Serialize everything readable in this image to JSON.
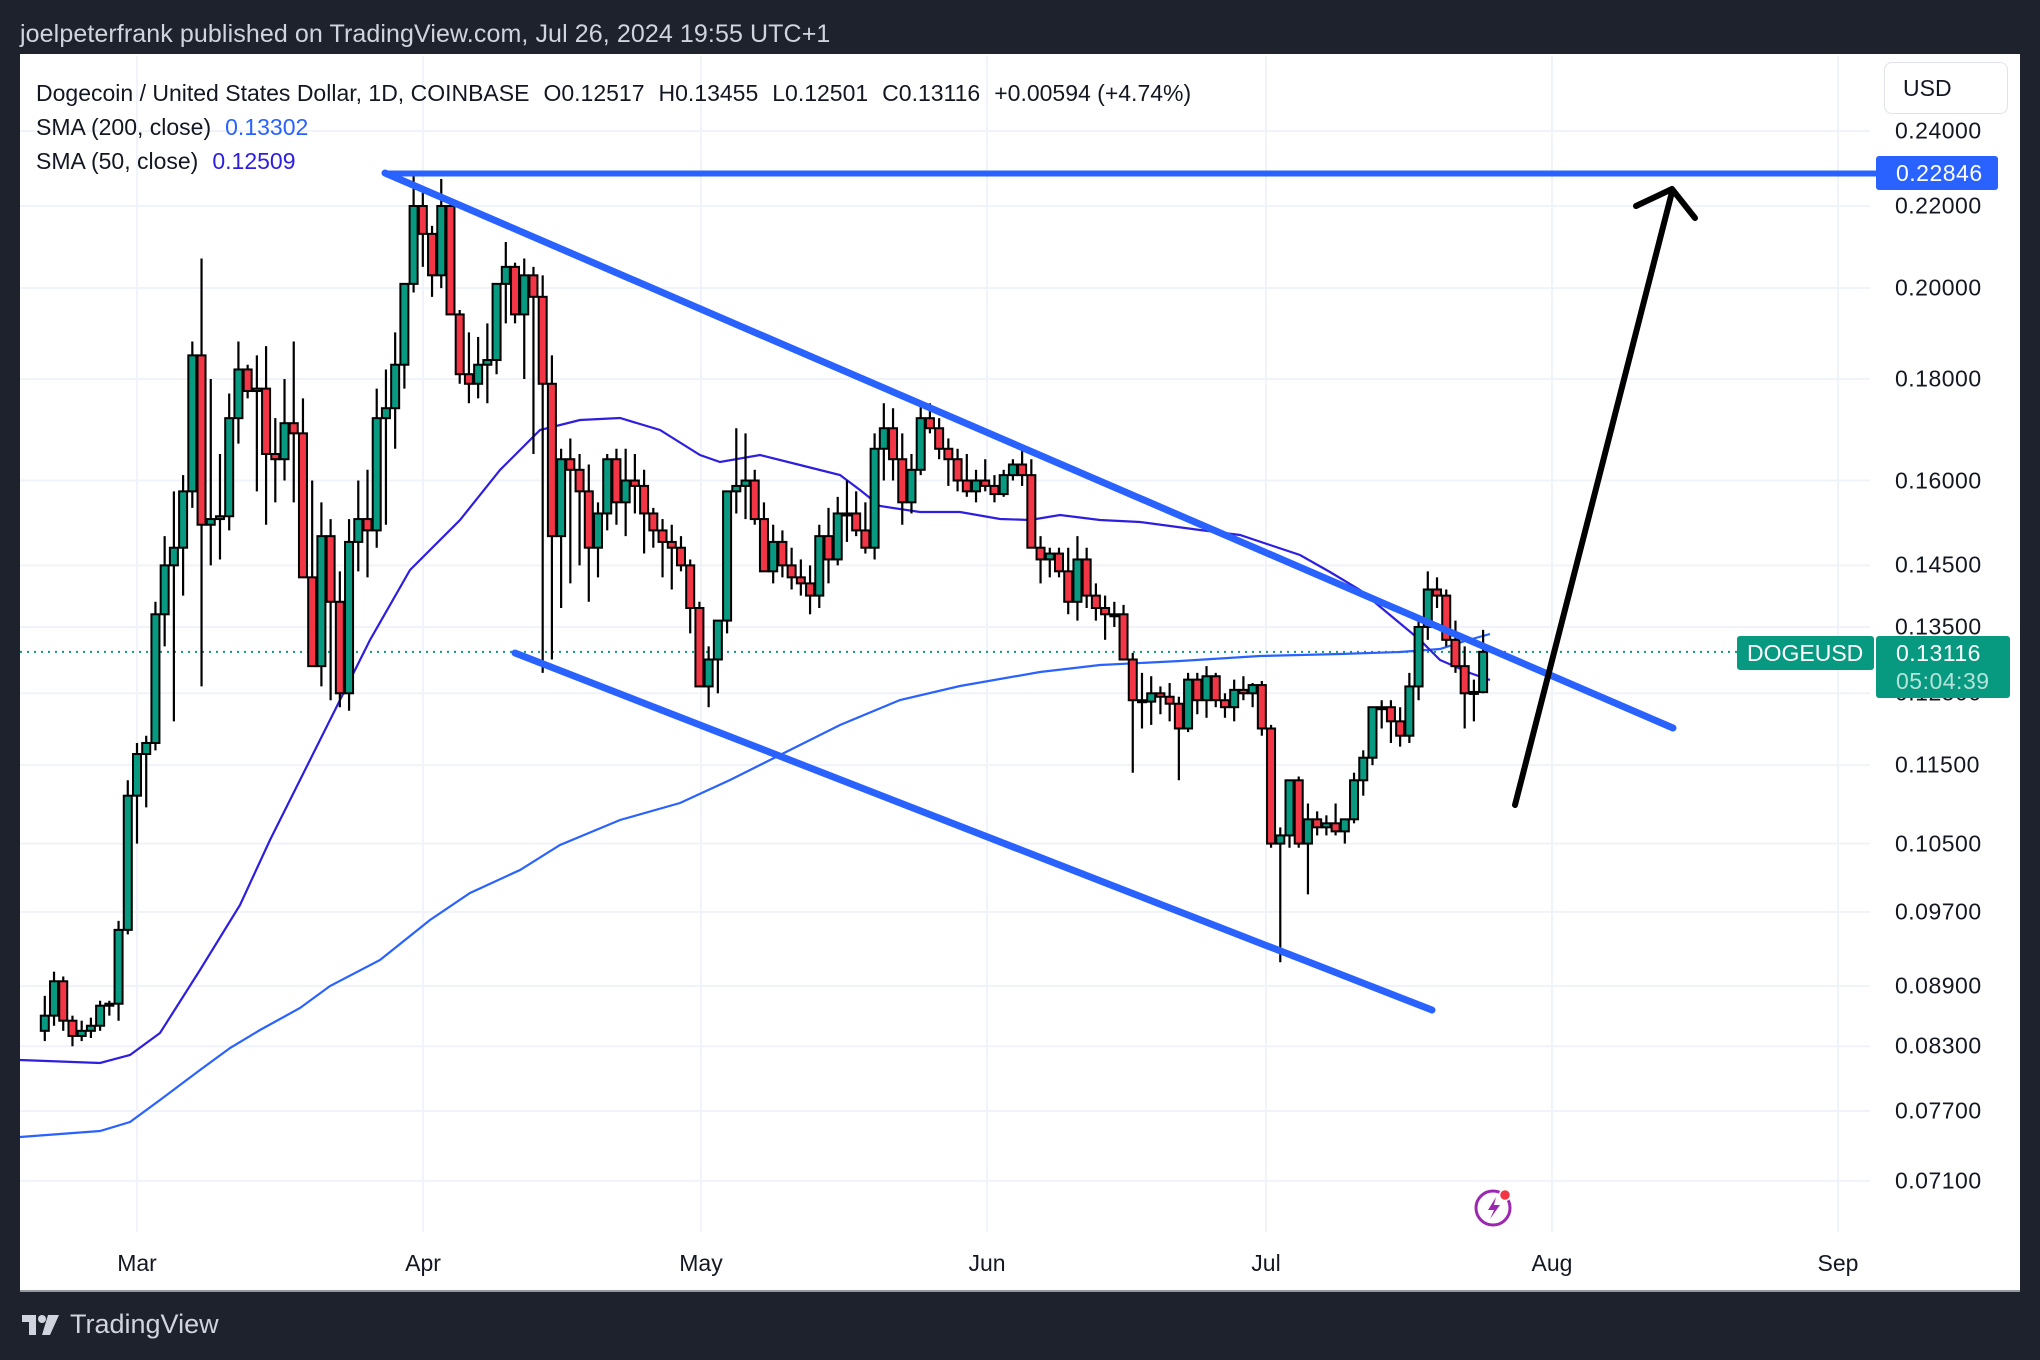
{
  "header": {
    "published": "joelpeterfrank published on TradingView.com, Jul 26, 2024 19:55 UTC+1"
  },
  "legend": {
    "symbol_line": "Dogecoin / United States Dollar, 1D, COINBASE",
    "open": "O0.12517",
    "high": "H0.13455",
    "low": "L0.12501",
    "close": "C0.13116",
    "change": "+0.00594 (+4.74%)",
    "sma200_label": "SMA (200, close)",
    "sma200_value": "0.13302",
    "sma50_label": "SMA (50, close)",
    "sma50_value": "0.12509"
  },
  "price_axis": {
    "currency_button": "USD",
    "level_label": "0.22846",
    "symbol_label": "DOGEUSD",
    "last_price": "0.13116",
    "countdown": "05:04:39"
  },
  "footer": {
    "brand": "TradingView"
  },
  "colors": {
    "up": "#089981",
    "down": "#f23645",
    "sma200": "#2962ff",
    "sma50": "#2d1ee0",
    "trendline": "#2962ff",
    "arrow": "#000000",
    "frame": "#1e222d"
  },
  "chart_data": {
    "type": "candlestick",
    "title": "Dogecoin / United States Dollar, 1D, COINBASE",
    "xlabel": "",
    "ylabel": "USD",
    "y_scale": "log",
    "ylim": [
      0.066,
      0.252
    ],
    "y_ticks": [
      "0.24000",
      "0.22000",
      "0.20000",
      "0.18000",
      "0.16000",
      "0.14500",
      "0.13500",
      "0.12500",
      "0.11500",
      "0.10500",
      "0.09700",
      "0.08900",
      "0.08300",
      "0.07700",
      "0.07100"
    ],
    "x_ticks": [
      "Mar",
      "Apr",
      "May",
      "Jun",
      "Jul",
      "Aug",
      "Sep"
    ],
    "grid": true,
    "last": {
      "open": 0.12517,
      "high": 0.13455,
      "low": 0.12501,
      "close": 0.13116,
      "change": 0.00594,
      "change_pct": 4.74
    },
    "indicators": [
      {
        "name": "SMA (200, close)",
        "value": 0.13302,
        "color": "#2962ff"
      },
      {
        "name": "SMA (50, close)",
        "value": 0.12509,
        "color": "#2d1ee0"
      }
    ],
    "drawings": [
      {
        "type": "horizontal_ray",
        "price": 0.22846,
        "from": "2024-03-28"
      },
      {
        "type": "trendline",
        "name": "upper channel",
        "from": [
          "2024-03-28",
          0.2285
        ],
        "to": [
          "2024-08-08",
          0.1215
        ]
      },
      {
        "type": "trendline",
        "name": "lower channel",
        "from": [
          "2024-04-12",
          0.1298
        ],
        "to": [
          "2024-07-20",
          0.0865
        ]
      },
      {
        "type": "arrow",
        "from": [
          "2024-07-30",
          0.109
        ],
        "to": [
          "2024-08-10",
          0.2225
        ]
      }
    ],
    "candles": [
      [
        "02-20",
        0.0845,
        0.088,
        0.0835,
        0.086
      ],
      [
        "02-21",
        0.086,
        0.0905,
        0.085,
        0.0895
      ],
      [
        "02-22",
        0.0895,
        0.09,
        0.0845,
        0.0855
      ],
      [
        "02-23",
        0.0855,
        0.086,
        0.083,
        0.084
      ],
      [
        "02-24",
        0.084,
        0.0855,
        0.0835,
        0.0845
      ],
      [
        "02-25",
        0.0845,
        0.0858,
        0.0838,
        0.085
      ],
      [
        "02-26",
        0.085,
        0.0875,
        0.0845,
        0.087
      ],
      [
        "02-27",
        0.087,
        0.0875,
        0.086,
        0.0872
      ],
      [
        "02-28",
        0.0872,
        0.096,
        0.0855,
        0.095
      ],
      [
        "02-29",
        0.095,
        0.113,
        0.0945,
        0.111
      ],
      [
        "03-01",
        0.111,
        0.118,
        0.105,
        0.1165
      ],
      [
        "03-02",
        0.1165,
        0.119,
        0.1095,
        0.118
      ],
      [
        "03-03",
        0.118,
        0.139,
        0.117,
        0.137
      ],
      [
        "03-04",
        0.137,
        0.15,
        0.132,
        0.145
      ],
      [
        "03-05",
        0.145,
        0.158,
        0.121,
        0.148
      ],
      [
        "03-06",
        0.148,
        0.161,
        0.14,
        0.158
      ],
      [
        "03-07",
        0.158,
        0.188,
        0.155,
        0.185
      ],
      [
        "03-08",
        0.185,
        0.207,
        0.126,
        0.152
      ],
      [
        "03-09",
        0.152,
        0.18,
        0.145,
        0.153
      ],
      [
        "03-10",
        0.153,
        0.165,
        0.146,
        0.1535
      ],
      [
        "03-11",
        0.1535,
        0.177,
        0.151,
        0.172
      ],
      [
        "03-12",
        0.172,
        0.188,
        0.167,
        0.182
      ],
      [
        "03-13",
        0.182,
        0.183,
        0.176,
        0.1775
      ],
      [
        "03-14",
        0.1775,
        0.185,
        0.158,
        0.178
      ],
      [
        "03-15",
        0.178,
        0.187,
        0.152,
        0.165
      ],
      [
        "03-16",
        0.165,
        0.172,
        0.156,
        0.164
      ],
      [
        "03-17",
        0.164,
        0.18,
        0.16,
        0.171
      ],
      [
        "03-18",
        0.171,
        0.188,
        0.156,
        0.169
      ],
      [
        "03-19",
        0.169,
        0.176,
        0.148,
        0.143
      ],
      [
        "03-20",
        0.143,
        0.16,
        0.139,
        0.129
      ],
      [
        "03-21",
        0.129,
        0.156,
        0.126,
        0.15
      ],
      [
        "03-22",
        0.15,
        0.153,
        0.124,
        0.139
      ],
      [
        "03-23",
        0.139,
        0.144,
        0.123,
        0.125
      ],
      [
        "03-24",
        0.125,
        0.153,
        0.1225,
        0.149
      ],
      [
        "03-25",
        0.149,
        0.16,
        0.144,
        0.153
      ],
      [
        "03-26",
        0.153,
        0.162,
        0.143,
        0.151
      ],
      [
        "03-27",
        0.151,
        0.178,
        0.148,
        0.172
      ],
      [
        "03-28",
        0.172,
        0.182,
        0.152,
        0.174
      ],
      [
        "03-29",
        0.174,
        0.19,
        0.166,
        0.183
      ],
      [
        "03-30",
        0.183,
        0.192,
        0.178,
        0.201
      ],
      [
        "03-31",
        0.201,
        0.2285,
        0.199,
        0.22
      ],
      [
        "04-01",
        0.22,
        0.225,
        0.205,
        0.213
      ],
      [
        "04-02",
        0.213,
        0.215,
        0.198,
        0.203
      ],
      [
        "04-03",
        0.203,
        0.227,
        0.2,
        0.22
      ],
      [
        "04-04",
        0.22,
        0.221,
        0.201,
        0.194
      ],
      [
        "04-05",
        0.194,
        0.195,
        0.179,
        0.181
      ],
      [
        "04-06",
        0.181,
        0.19,
        0.175,
        0.179
      ],
      [
        "04-07",
        0.179,
        0.189,
        0.176,
        0.183
      ],
      [
        "04-08",
        0.183,
        0.192,
        0.175,
        0.184
      ],
      [
        "04-09",
        0.184,
        0.198,
        0.181,
        0.201
      ],
      [
        "04-10",
        0.201,
        0.211,
        0.192,
        0.205
      ],
      [
        "04-11",
        0.205,
        0.206,
        0.192,
        0.194
      ],
      [
        "04-12",
        0.194,
        0.207,
        0.18,
        0.203
      ],
      [
        "04-13",
        0.203,
        0.205,
        0.165,
        0.198
      ],
      [
        "04-14",
        0.198,
        0.203,
        0.128,
        0.179
      ],
      [
        "04-15",
        0.179,
        0.185,
        0.13,
        0.15
      ],
      [
        "04-16",
        0.15,
        0.166,
        0.138,
        0.164
      ],
      [
        "04-17",
        0.164,
        0.168,
        0.142,
        0.162
      ],
      [
        "04-18",
        0.162,
        0.165,
        0.145,
        0.158
      ],
      [
        "04-19",
        0.158,
        0.163,
        0.139,
        0.148
      ],
      [
        "04-20",
        0.148,
        0.156,
        0.143,
        0.154
      ],
      [
        "04-21",
        0.154,
        0.165,
        0.151,
        0.164
      ],
      [
        "04-22",
        0.164,
        0.166,
        0.152,
        0.156
      ],
      [
        "04-23",
        0.156,
        0.166,
        0.15,
        0.16
      ],
      [
        "04-24",
        0.16,
        0.165,
        0.154,
        0.159
      ],
      [
        "04-25",
        0.159,
        0.162,
        0.147,
        0.154
      ],
      [
        "04-26",
        0.154,
        0.155,
        0.148,
        0.151
      ],
      [
        "04-27",
        0.151,
        0.153,
        0.143,
        0.149
      ],
      [
        "04-28",
        0.149,
        0.152,
        0.141,
        0.148
      ],
      [
        "04-29",
        0.148,
        0.15,
        0.144,
        0.145
      ],
      [
        "04-30",
        0.145,
        0.146,
        0.134,
        0.138
      ],
      [
        "05-01",
        0.138,
        0.139,
        0.126,
        0.126
      ],
      [
        "05-02",
        0.126,
        0.132,
        0.123,
        0.13
      ],
      [
        "05-03",
        0.13,
        0.134,
        0.125,
        0.136
      ],
      [
        "05-04",
        0.136,
        0.15,
        0.134,
        0.158
      ],
      [
        "05-05",
        0.158,
        0.17,
        0.154,
        0.159
      ],
      [
        "05-06",
        0.159,
        0.169,
        0.153,
        0.16
      ],
      [
        "05-07",
        0.16,
        0.162,
        0.152,
        0.153
      ],
      [
        "05-08",
        0.153,
        0.156,
        0.144,
        0.144
      ],
      [
        "05-09",
        0.144,
        0.152,
        0.142,
        0.149
      ],
      [
        "05-10",
        0.149,
        0.151,
        0.143,
        0.145
      ],
      [
        "05-11",
        0.145,
        0.148,
        0.141,
        0.143
      ],
      [
        "05-12",
        0.143,
        0.146,
        0.14,
        0.142
      ],
      [
        "05-13",
        0.142,
        0.145,
        0.137,
        0.14
      ],
      [
        "05-14",
        0.14,
        0.152,
        0.138,
        0.15
      ],
      [
        "05-15",
        0.15,
        0.155,
        0.142,
        0.146
      ],
      [
        "05-16",
        0.146,
        0.157,
        0.145,
        0.154
      ],
      [
        "05-17",
        0.154,
        0.16,
        0.149,
        0.154
      ],
      [
        "05-18",
        0.154,
        0.158,
        0.15,
        0.151
      ],
      [
        "05-19",
        0.151,
        0.156,
        0.147,
        0.148
      ],
      [
        "05-20",
        0.148,
        0.169,
        0.146,
        0.166
      ],
      [
        "05-21",
        0.166,
        0.175,
        0.16,
        0.17
      ],
      [
        "05-22",
        0.17,
        0.174,
        0.16,
        0.164
      ],
      [
        "05-23",
        0.164,
        0.169,
        0.152,
        0.156
      ],
      [
        "05-24",
        0.156,
        0.165,
        0.154,
        0.162
      ],
      [
        "05-25",
        0.162,
        0.175,
        0.161,
        0.172
      ],
      [
        "05-26",
        0.172,
        0.175,
        0.169,
        0.17
      ],
      [
        "05-27",
        0.17,
        0.172,
        0.164,
        0.166
      ],
      [
        "05-28",
        0.166,
        0.168,
        0.159,
        0.164
      ],
      [
        "05-29",
        0.164,
        0.166,
        0.158,
        0.16
      ],
      [
        "05-30",
        0.16,
        0.165,
        0.157,
        0.158
      ],
      [
        "05-31",
        0.158,
        0.162,
        0.156,
        0.16
      ],
      [
        "06-01",
        0.16,
        0.164,
        0.158,
        0.159
      ],
      [
        "06-02",
        0.159,
        0.161,
        0.156,
        0.1575
      ],
      [
        "06-03",
        0.1575,
        0.162,
        0.157,
        0.161
      ],
      [
        "06-04",
        0.161,
        0.164,
        0.16,
        0.163
      ],
      [
        "06-05",
        0.163,
        0.166,
        0.159,
        0.161
      ],
      [
        "06-06",
        0.161,
        0.164,
        0.148,
        0.148
      ],
      [
        "06-07",
        0.148,
        0.15,
        0.142,
        0.146
      ],
      [
        "06-08",
        0.146,
        0.148,
        0.143,
        0.147
      ],
      [
        "06-09",
        0.147,
        0.148,
        0.143,
        0.144
      ],
      [
        "06-10",
        0.144,
        0.148,
        0.137,
        0.139
      ],
      [
        "06-11",
        0.139,
        0.15,
        0.136,
        0.146
      ],
      [
        "06-12",
        0.146,
        0.148,
        0.138,
        0.14
      ],
      [
        "06-13",
        0.14,
        0.142,
        0.136,
        0.138
      ],
      [
        "06-14",
        0.138,
        0.14,
        0.133,
        0.137
      ],
      [
        "06-15",
        0.137,
        0.139,
        0.135,
        0.137
      ],
      [
        "06-16",
        0.137,
        0.1385,
        0.134,
        0.13
      ],
      [
        "06-17",
        0.13,
        0.131,
        0.114,
        0.124
      ],
      [
        "06-18",
        0.124,
        0.128,
        0.12,
        0.1238
      ],
      [
        "06-19",
        0.1238,
        0.1275,
        0.1205,
        0.125
      ],
      [
        "06-20",
        0.125,
        0.126,
        0.122,
        0.1245
      ],
      [
        "06-21",
        0.1245,
        0.1265,
        0.121,
        0.1235
      ],
      [
        "06-22",
        0.1235,
        0.1245,
        0.113,
        0.12
      ],
      [
        "06-23",
        0.12,
        0.128,
        0.1195,
        0.127
      ],
      [
        "06-24",
        0.127,
        0.128,
        0.122,
        0.124
      ],
      [
        "06-25",
        0.124,
        0.129,
        0.1215,
        0.1275
      ],
      [
        "06-26",
        0.1275,
        0.128,
        0.123,
        0.124
      ],
      [
        "06-27",
        0.124,
        0.125,
        0.1215,
        0.123
      ],
      [
        "06-28",
        0.123,
        0.127,
        0.121,
        0.1255
      ],
      [
        "06-29",
        0.1255,
        0.1275,
        0.124,
        0.125
      ],
      [
        "06-30",
        0.125,
        0.1265,
        0.123,
        0.1262
      ],
      [
        "07-01",
        0.1262,
        0.1268,
        0.119,
        0.12
      ],
      [
        "07-02",
        0.12,
        0.1205,
        0.1045,
        0.105
      ],
      [
        "07-03",
        0.105,
        0.107,
        0.0915,
        0.106
      ],
      [
        "07-04",
        0.106,
        0.113,
        0.1045,
        0.113
      ],
      [
        "07-05",
        0.113,
        0.1135,
        0.1045,
        0.105
      ],
      [
        "07-06",
        0.105,
        0.11,
        0.099,
        0.108
      ],
      [
        "07-07",
        0.108,
        0.109,
        0.106,
        0.107
      ],
      [
        "07-08",
        0.107,
        0.1085,
        0.106,
        0.1075
      ],
      [
        "07-09",
        0.1075,
        0.11,
        0.106,
        0.1065
      ],
      [
        "07-10",
        0.1065,
        0.108,
        0.105,
        0.108
      ],
      [
        "07-11",
        0.108,
        0.114,
        0.1075,
        0.113
      ],
      [
        "07-12",
        0.113,
        0.117,
        0.111,
        0.116
      ],
      [
        "07-13",
        0.116,
        0.123,
        0.115,
        0.123
      ],
      [
        "07-14",
        0.123,
        0.124,
        0.12,
        0.123
      ],
      [
        "07-15",
        0.123,
        0.124,
        0.118,
        0.121
      ],
      [
        "07-16",
        0.121,
        0.123,
        0.1175,
        0.119
      ],
      [
        "07-17",
        0.119,
        0.128,
        0.118,
        0.126
      ],
      [
        "07-18",
        0.126,
        0.136,
        0.124,
        0.135
      ],
      [
        "07-19",
        0.135,
        0.144,
        0.133,
        0.141
      ],
      [
        "07-20",
        0.141,
        0.143,
        0.138,
        0.14
      ],
      [
        "07-21",
        0.14,
        0.141,
        0.132,
        0.133
      ],
      [
        "07-22",
        0.133,
        0.136,
        0.128,
        0.129
      ],
      [
        "07-23",
        0.129,
        0.132,
        0.12,
        0.125
      ],
      [
        "07-24",
        0.125,
        0.127,
        0.121,
        0.1252
      ],
      [
        "07-25",
        0.12517,
        0.13455,
        0.12501,
        0.13116
      ]
    ]
  }
}
